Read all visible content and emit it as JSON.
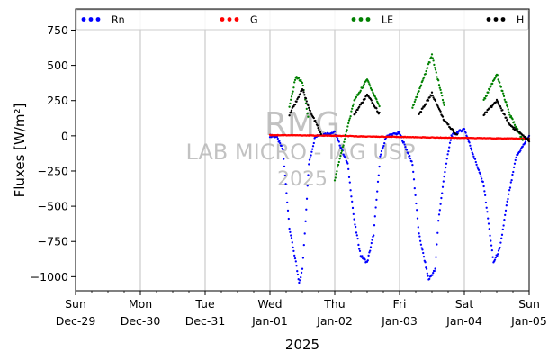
{
  "chart_data": {
    "type": "scatter",
    "title": "",
    "xlabel": "2025",
    "ylabel": "Fluxes [W/m²]",
    "ylim": [
      -1100,
      900
    ],
    "yticks": [
      -1000,
      -750,
      -500,
      -250,
      0,
      250,
      500,
      750
    ],
    "ytick_labels": [
      "−1000",
      "−750",
      "−500",
      "−250",
      "0",
      "250",
      "500",
      "750"
    ],
    "xlim": [
      "2024-12-29T00:00",
      "2025-01-05T00:00"
    ],
    "xticks": [
      {
        "day": "Sun",
        "date": "Dec-29"
      },
      {
        "day": "Mon",
        "date": "Dec-30"
      },
      {
        "day": "Tue",
        "date": "Dec-31"
      },
      {
        "day": "Wed",
        "date": "Jan-01"
      },
      {
        "day": "Thu",
        "date": "Jan-02"
      },
      {
        "day": "Fri",
        "date": "Jan-03"
      },
      {
        "day": "Sat",
        "date": "Jan-04"
      },
      {
        "day": "Sun",
        "date": "Jan-05"
      }
    ],
    "grid": "vertical",
    "legend_position": "top",
    "watermark": {
      "line1": "RMG",
      "line2": "LAB MICRO - IAG USP",
      "line3": "2025"
    },
    "series": [
      {
        "name": "Rn",
        "color": "#0000ff",
        "points": [
          [
            3.0,
            0
          ],
          [
            3.1,
            -5
          ],
          [
            3.2,
            -100
          ],
          [
            3.3,
            -650
          ],
          [
            3.4,
            -900
          ],
          [
            3.45,
            -1050
          ],
          [
            3.5,
            -950
          ],
          [
            3.55,
            -600
          ],
          [
            3.6,
            -200
          ],
          [
            3.7,
            0
          ],
          [
            4.0,
            25
          ],
          [
            4.2,
            -200
          ],
          [
            4.3,
            -600
          ],
          [
            4.4,
            -850
          ],
          [
            4.5,
            -900
          ],
          [
            4.6,
            -700
          ],
          [
            4.7,
            -150
          ],
          [
            4.8,
            0
          ],
          [
            5.0,
            20
          ],
          [
            5.2,
            -200
          ],
          [
            5.3,
            -700
          ],
          [
            5.45,
            -1020
          ],
          [
            5.55,
            -950
          ],
          [
            5.6,
            -600
          ],
          [
            5.7,
            -250
          ],
          [
            5.8,
            0
          ],
          [
            6.0,
            50
          ],
          [
            6.3,
            -350
          ],
          [
            6.45,
            -900
          ],
          [
            6.55,
            -800
          ],
          [
            6.65,
            -500
          ],
          [
            6.8,
            -150
          ],
          [
            7.0,
            0
          ]
        ]
      },
      {
        "name": "G",
        "color": "#ff0000",
        "points": [
          [
            3.0,
            5
          ],
          [
            3.5,
            3
          ],
          [
            4.0,
            0
          ],
          [
            4.5,
            -5
          ],
          [
            5.0,
            -8
          ],
          [
            5.5,
            -12
          ],
          [
            6.0,
            -15
          ],
          [
            6.5,
            -18
          ],
          [
            7.0,
            -20
          ]
        ]
      },
      {
        "name": "LE",
        "color": "#008000",
        "points": [
          [
            3.3,
            200
          ],
          [
            3.4,
            420
          ],
          [
            3.5,
            380
          ],
          [
            3.6,
            100
          ],
          [
            4.0,
            -310
          ],
          [
            4.3,
            250
          ],
          [
            4.5,
            400
          ],
          [
            4.7,
            200
          ],
          [
            5.2,
            200
          ],
          [
            5.5,
            570
          ],
          [
            5.7,
            200
          ],
          [
            6.3,
            250
          ],
          [
            6.5,
            440
          ],
          [
            6.7,
            150
          ],
          [
            6.9,
            -30
          ]
        ]
      },
      {
        "name": "H",
        "color": "#000000",
        "points": [
          [
            3.3,
            150
          ],
          [
            3.5,
            330
          ],
          [
            3.6,
            200
          ],
          [
            3.8,
            0
          ],
          [
            4.3,
            150
          ],
          [
            4.5,
            290
          ],
          [
            4.7,
            150
          ],
          [
            5.3,
            150
          ],
          [
            5.5,
            300
          ],
          [
            5.7,
            100
          ],
          [
            5.9,
            0
          ],
          [
            6.3,
            150
          ],
          [
            6.5,
            250
          ],
          [
            6.7,
            80
          ],
          [
            7.0,
            -40
          ]
        ]
      }
    ]
  }
}
